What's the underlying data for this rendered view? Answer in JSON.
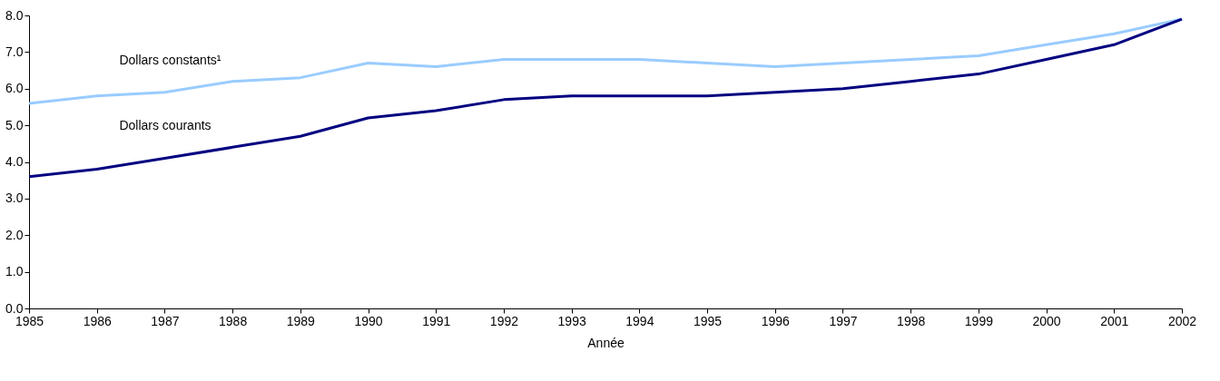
{
  "chart_data": {
    "type": "line",
    "xlabel": "Année",
    "x": [
      1985,
      1986,
      1987,
      1988,
      1989,
      1990,
      1991,
      1992,
      1993,
      1994,
      1995,
      1996,
      1997,
      1998,
      1999,
      2000,
      2001,
      2002
    ],
    "series": [
      {
        "name": "Dollars constants¹",
        "color": "#99ccff",
        "values": [
          5.6,
          5.8,
          5.9,
          6.2,
          6.3,
          6.7,
          6.6,
          6.8,
          6.8,
          6.8,
          6.7,
          6.6,
          6.7,
          6.8,
          6.9,
          7.2,
          7.5,
          7.9
        ]
      },
      {
        "name": "Dollars courants",
        "color": "#000080",
        "values": [
          3.6,
          3.8,
          4.1,
          4.4,
          4.7,
          5.2,
          5.4,
          5.7,
          5.8,
          5.8,
          5.8,
          5.9,
          6.0,
          6.2,
          6.4,
          6.8,
          7.2,
          7.9
        ]
      }
    ],
    "xlim": [
      1985,
      2002
    ],
    "xticks": [
      1985,
      1986,
      1987,
      1988,
      1989,
      1990,
      1991,
      1992,
      1993,
      1994,
      1995,
      1996,
      1997,
      1998,
      1999,
      2000,
      2001,
      2002
    ],
    "ylim": [
      0,
      8
    ],
    "yticks": [
      {
        "value": 0,
        "label": "0.0"
      },
      {
        "value": 1,
        "label": "1.0"
      },
      {
        "value": 2,
        "label": "2.0"
      },
      {
        "value": 3,
        "label": "3.0"
      },
      {
        "value": 4,
        "label": "4.0"
      },
      {
        "value": 5,
        "label": "5.0"
      },
      {
        "value": 6,
        "label": "6.0"
      },
      {
        "value": 7,
        "label": "7.0"
      },
      {
        "value": 8,
        "label": "8.0"
      }
    ],
    "grid": false,
    "legend": false,
    "marker": "none",
    "line_style": "solid"
  }
}
